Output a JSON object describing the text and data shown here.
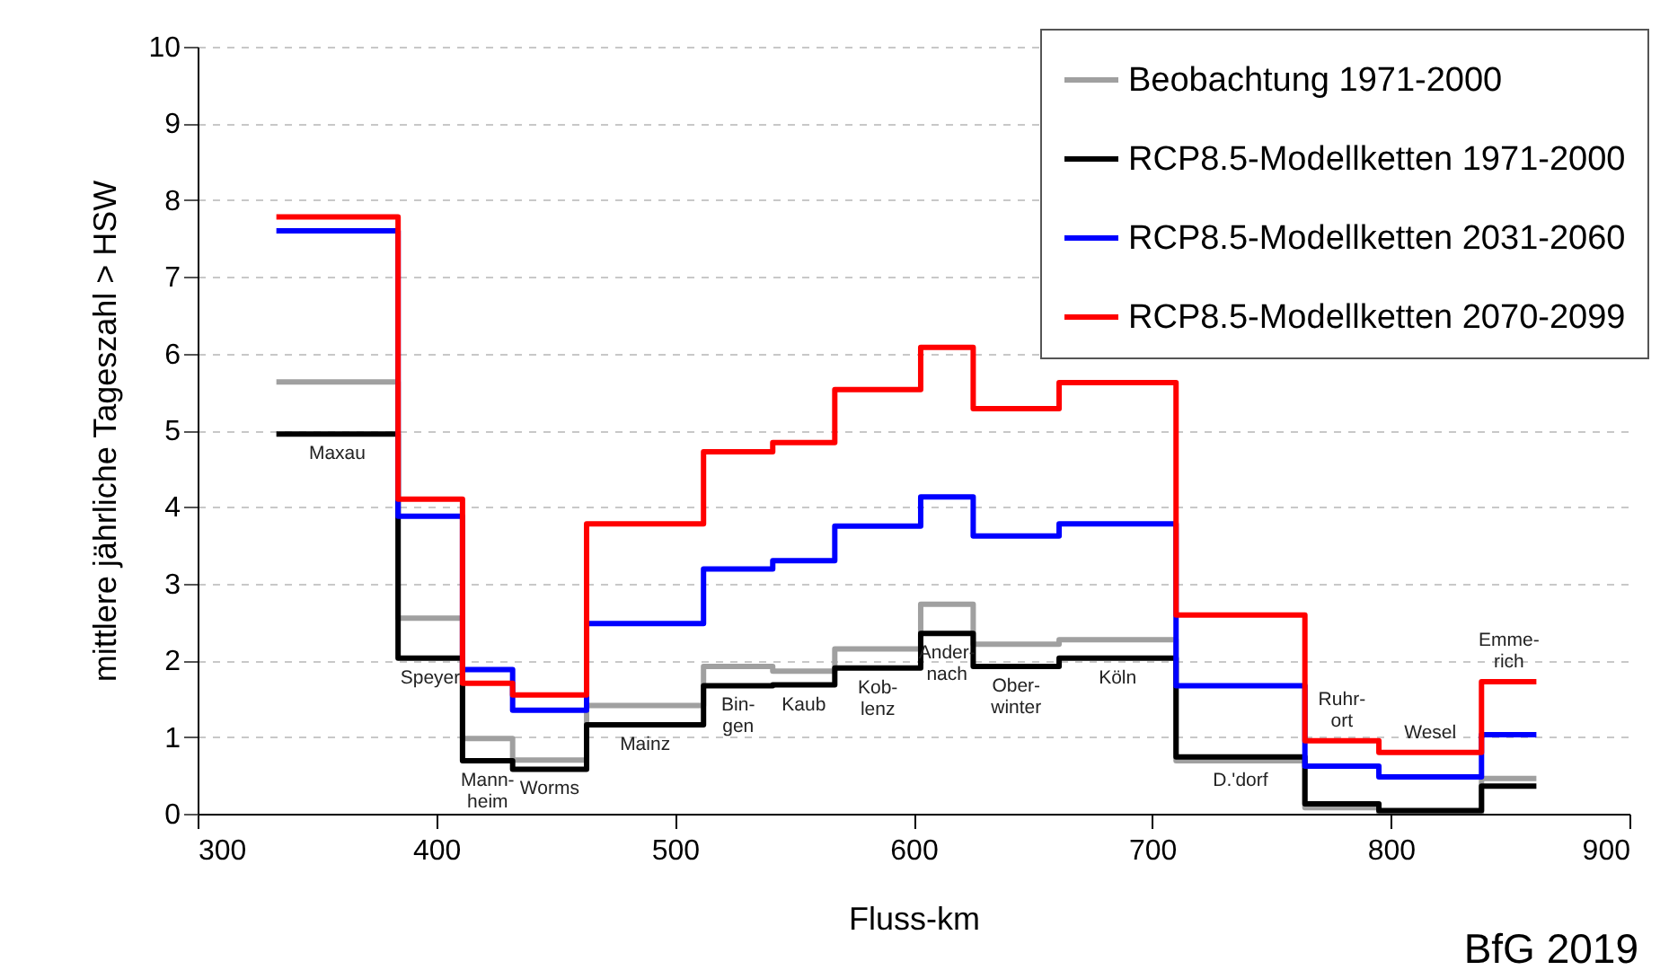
{
  "chart_data": {
    "type": "step",
    "xlabel": "Fluss-km",
    "ylabel": "mittlere jährliche Tageszahl > HSW",
    "x": [
      333,
      384,
      411,
      432,
      463,
      512,
      541,
      567,
      603,
      625,
      661,
      710,
      764,
      795,
      838,
      861
    ],
    "series": [
      {
        "name": "Beobachtung 1971-2000",
        "color": "#a0a0a0",
        "values": [
          5.63,
          2.55,
          0.98,
          0.7,
          1.41,
          1.92,
          1.86,
          2.15,
          2.73,
          2.21,
          2.27,
          0.69,
          0.08,
          0.02,
          0.46,
          0.46
        ]
      },
      {
        "name": "RCP8.5-Modellketten 1971-2000",
        "color": "#000000",
        "values": [
          4.95,
          2.03,
          0.69,
          0.58,
          1.16,
          1.67,
          1.68,
          1.9,
          2.35,
          1.92,
          2.03,
          0.74,
          0.13,
          0.04,
          0.36,
          0.36
        ]
      },
      {
        "name": "RCP8.5-Modellketten 2031-2060",
        "color": "#0000ff",
        "values": [
          7.6,
          3.88,
          1.88,
          1.35,
          2.48,
          3.19,
          3.3,
          3.75,
          4.13,
          3.62,
          3.78,
          1.67,
          0.62,
          0.48,
          1.03,
          1.03
        ]
      },
      {
        "name": "RCP8.5-Modellketten 2070-2099",
        "color": "#ff0000",
        "values": [
          7.78,
          4.1,
          1.7,
          1.55,
          3.78,
          4.72,
          4.84,
          5.53,
          6.08,
          5.28,
          5.62,
          2.59,
          0.95,
          0.8,
          1.72,
          1.72
        ]
      }
    ],
    "xlim": [
      300,
      900
    ],
    "xticks": [
      300,
      400,
      500,
      600,
      700,
      800,
      900
    ],
    "ylim": [
      0,
      10
    ],
    "yticks": [
      0,
      1,
      2,
      3,
      4,
      5,
      6,
      7,
      8,
      9,
      10
    ],
    "grid": "y",
    "legend": "top right",
    "marker": "none",
    "line_style": "solid",
    "annotations": [
      {
        "text": "Maxau",
        "x": 333,
        "y": 4.95
      },
      {
        "text": "Speyer",
        "x": 384,
        "y": 2.03
      },
      {
        "text": "Mann-\nheim",
        "x": 411,
        "y": 0.69
      },
      {
        "text": "Worms",
        "x": 432,
        "y": 0.58
      },
      {
        "text": "Mainz",
        "x": 463,
        "y": 1.16
      },
      {
        "text": "Bin-\ngen",
        "x": 512,
        "y": 1.67
      },
      {
        "text": "Kaub",
        "x": 541,
        "y": 1.68
      },
      {
        "text": "Kob-\nlenz",
        "x": 567,
        "y": 1.9
      },
      {
        "text": "Ander-\nnach",
        "x": 603,
        "y": 2.35
      },
      {
        "text": "Ober-\nwinter",
        "x": 625,
        "y": 1.92
      },
      {
        "text": "Köln",
        "x": 661,
        "y": 2.03
      },
      {
        "text": "D.'dorf",
        "x": 710,
        "y": 0.69
      },
      {
        "text": "Ruhr-\nort",
        "x": 764,
        "y": 0.95
      },
      {
        "text": "Wesel",
        "x": 795,
        "y": 0.8
      },
      {
        "text": "Emme-\nrich",
        "x": 838,
        "y": 1.72
      },
      "BfG 2019"
    ]
  }
}
